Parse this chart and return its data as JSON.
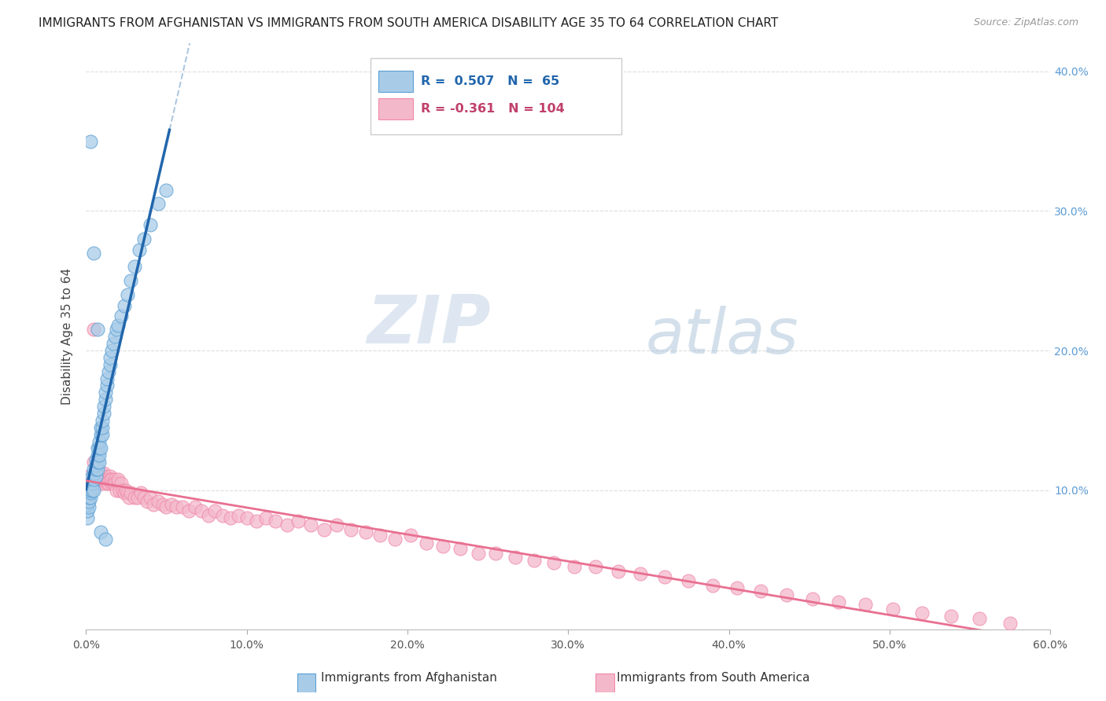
{
  "title": "IMMIGRANTS FROM AFGHANISTAN VS IMMIGRANTS FROM SOUTH AMERICA DISABILITY AGE 35 TO 64 CORRELATION CHART",
  "source": "Source: ZipAtlas.com",
  "ylabel": "Disability Age 35 to 64",
  "xlim": [
    0.0,
    0.6
  ],
  "ylim": [
    0.0,
    0.42
  ],
  "xticks": [
    0.0,
    0.1,
    0.2,
    0.3,
    0.4,
    0.5,
    0.6
  ],
  "yticks": [
    0.0,
    0.1,
    0.2,
    0.3,
    0.4
  ],
  "xtick_labels": [
    "0.0%",
    "10.0%",
    "20.0%",
    "30.0%",
    "40.0%",
    "50.0%",
    "60.0%"
  ],
  "ytick_labels_right": [
    "",
    "10.0%",
    "20.0%",
    "30.0%",
    "40.0%"
  ],
  "afghanistan_color": "#a8cce8",
  "south_america_color": "#f4b8cb",
  "afghanistan_edge": "#5b9fd4",
  "south_america_edge": "#f08aaa",
  "trend_afghanistan_color": "#2166ac",
  "trend_south_america_color": "#e87090",
  "trend_extrapolate_color": "#aec8e0",
  "R_afghanistan": 0.507,
  "N_afghanistan": 65,
  "R_south_america": -0.361,
  "N_south_america": 104,
  "watermark_zip": "ZIP",
  "watermark_atlas": "atlas",
  "background_color": "#ffffff",
  "grid_color": "#dddddd",
  "afghanistan_scatter_x": [
    0.001,
    0.001,
    0.001,
    0.002,
    0.002,
    0.002,
    0.002,
    0.003,
    0.003,
    0.003,
    0.003,
    0.004,
    0.004,
    0.004,
    0.005,
    0.005,
    0.005,
    0.005,
    0.006,
    0.006,
    0.006,
    0.006,
    0.007,
    0.007,
    0.007,
    0.007,
    0.008,
    0.008,
    0.008,
    0.008,
    0.009,
    0.009,
    0.009,
    0.01,
    0.01,
    0.01,
    0.011,
    0.011,
    0.012,
    0.012,
    0.013,
    0.013,
    0.014,
    0.015,
    0.015,
    0.016,
    0.017,
    0.018,
    0.019,
    0.02,
    0.022,
    0.024,
    0.026,
    0.028,
    0.03,
    0.033,
    0.036,
    0.04,
    0.045,
    0.05,
    0.003,
    0.005,
    0.007,
    0.009,
    0.012
  ],
  "afghanistan_scatter_y": [
    0.08,
    0.085,
    0.09,
    0.088,
    0.092,
    0.095,
    0.1,
    0.095,
    0.098,
    0.1,
    0.105,
    0.1,
    0.105,
    0.11,
    0.1,
    0.108,
    0.112,
    0.115,
    0.11,
    0.115,
    0.118,
    0.122,
    0.115,
    0.12,
    0.125,
    0.13,
    0.12,
    0.125,
    0.13,
    0.135,
    0.13,
    0.14,
    0.145,
    0.14,
    0.145,
    0.15,
    0.155,
    0.16,
    0.165,
    0.17,
    0.175,
    0.18,
    0.185,
    0.19,
    0.195,
    0.2,
    0.205,
    0.21,
    0.215,
    0.218,
    0.225,
    0.232,
    0.24,
    0.25,
    0.26,
    0.272,
    0.28,
    0.29,
    0.305,
    0.315,
    0.35,
    0.27,
    0.215,
    0.07,
    0.065
  ],
  "south_america_scatter_x": [
    0.002,
    0.003,
    0.004,
    0.005,
    0.005,
    0.006,
    0.006,
    0.007,
    0.007,
    0.008,
    0.008,
    0.009,
    0.009,
    0.01,
    0.01,
    0.01,
    0.011,
    0.011,
    0.012,
    0.012,
    0.013,
    0.013,
    0.014,
    0.014,
    0.015,
    0.015,
    0.016,
    0.016,
    0.017,
    0.018,
    0.018,
    0.019,
    0.02,
    0.02,
    0.021,
    0.022,
    0.023,
    0.024,
    0.025,
    0.026,
    0.027,
    0.028,
    0.03,
    0.032,
    0.034,
    0.036,
    0.038,
    0.04,
    0.042,
    0.045,
    0.048,
    0.05,
    0.053,
    0.056,
    0.06,
    0.064,
    0.068,
    0.072,
    0.076,
    0.08,
    0.085,
    0.09,
    0.095,
    0.1,
    0.106,
    0.112,
    0.118,
    0.125,
    0.132,
    0.14,
    0.148,
    0.156,
    0.165,
    0.174,
    0.183,
    0.192,
    0.202,
    0.212,
    0.222,
    0.233,
    0.244,
    0.255,
    0.267,
    0.279,
    0.291,
    0.304,
    0.317,
    0.331,
    0.345,
    0.36,
    0.375,
    0.39,
    0.405,
    0.42,
    0.436,
    0.452,
    0.468,
    0.485,
    0.502,
    0.52,
    0.538,
    0.556,
    0.575,
    0.005
  ],
  "south_america_scatter_y": [
    0.11,
    0.105,
    0.1,
    0.12,
    0.108,
    0.115,
    0.112,
    0.105,
    0.108,
    0.11,
    0.108,
    0.112,
    0.108,
    0.105,
    0.11,
    0.108,
    0.108,
    0.112,
    0.108,
    0.11,
    0.105,
    0.108,
    0.105,
    0.108,
    0.11,
    0.108,
    0.105,
    0.108,
    0.105,
    0.108,
    0.105,
    0.1,
    0.105,
    0.108,
    0.1,
    0.105,
    0.1,
    0.098,
    0.1,
    0.098,
    0.095,
    0.098,
    0.095,
    0.095,
    0.098,
    0.095,
    0.092,
    0.095,
    0.09,
    0.092,
    0.09,
    0.088,
    0.09,
    0.088,
    0.088,
    0.085,
    0.088,
    0.085,
    0.082,
    0.085,
    0.082,
    0.08,
    0.082,
    0.08,
    0.078,
    0.08,
    0.078,
    0.075,
    0.078,
    0.075,
    0.072,
    0.075,
    0.072,
    0.07,
    0.068,
    0.065,
    0.068,
    0.062,
    0.06,
    0.058,
    0.055,
    0.055,
    0.052,
    0.05,
    0.048,
    0.045,
    0.045,
    0.042,
    0.04,
    0.038,
    0.035,
    0.032,
    0.03,
    0.028,
    0.025,
    0.022,
    0.02,
    0.018,
    0.015,
    0.012,
    0.01,
    0.008,
    0.005,
    0.215
  ]
}
